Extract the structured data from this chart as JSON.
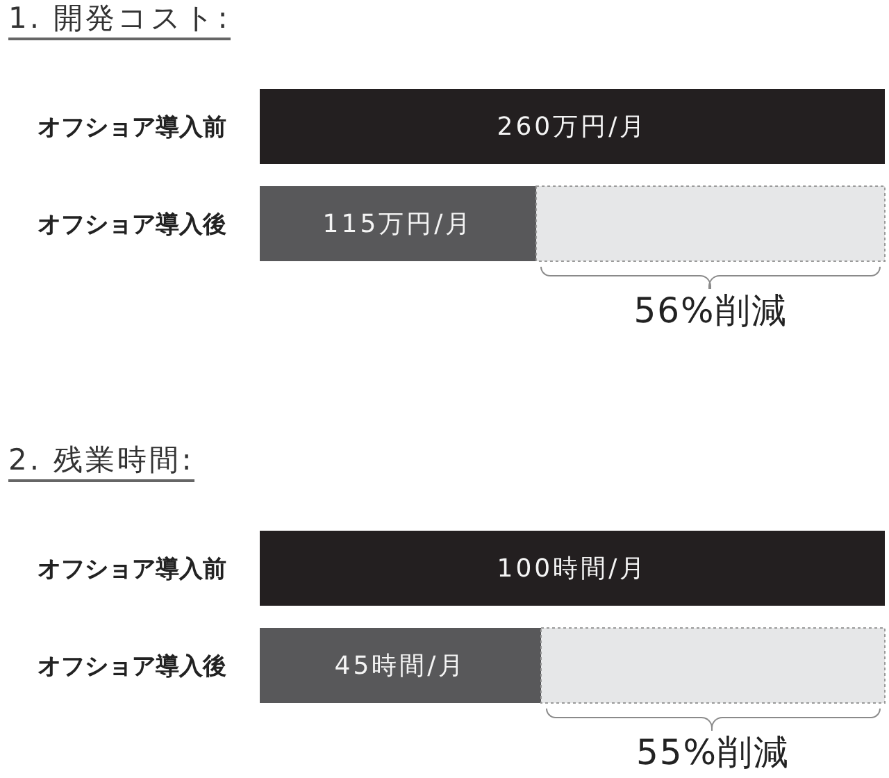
{
  "chart_data": [
    {
      "type": "bar",
      "orientation": "horizontal",
      "stacked": true,
      "title": "1. 開発コスト:",
      "categories": [
        "オフショア導入前",
        "オフショア導入後"
      ],
      "series": [
        {
          "colors": [
            "#231f20",
            "#58585a"
          ],
          "values": [
            260,
            115
          ],
          "value_labels": [
            "260万円/月",
            "115万円/月"
          ]
        },
        {
          "color": "#e6e7e8",
          "values": [
            null,
            145
          ]
        }
      ],
      "xlim": [
        0,
        260
      ],
      "tick_labels": "y",
      "annotations": [
        "56%削減"
      ]
    },
    {
      "type": "bar",
      "orientation": "horizontal",
      "stacked": true,
      "title": "2. 残業時間:",
      "categories": [
        "オフショア導入前",
        "オフショア導入後"
      ],
      "series": [
        {
          "colors": [
            "#231f20",
            "#58585a"
          ],
          "values": [
            100,
            45
          ],
          "value_labels": [
            "100時間/月",
            "45時間/月"
          ]
        },
        {
          "color": "#e6e7e8",
          "values": [
            null,
            55
          ]
        }
      ],
      "xlim": [
        0,
        100
      ],
      "tick_labels": "y",
      "annotations": [
        "55%削減"
      ]
    }
  ]
}
